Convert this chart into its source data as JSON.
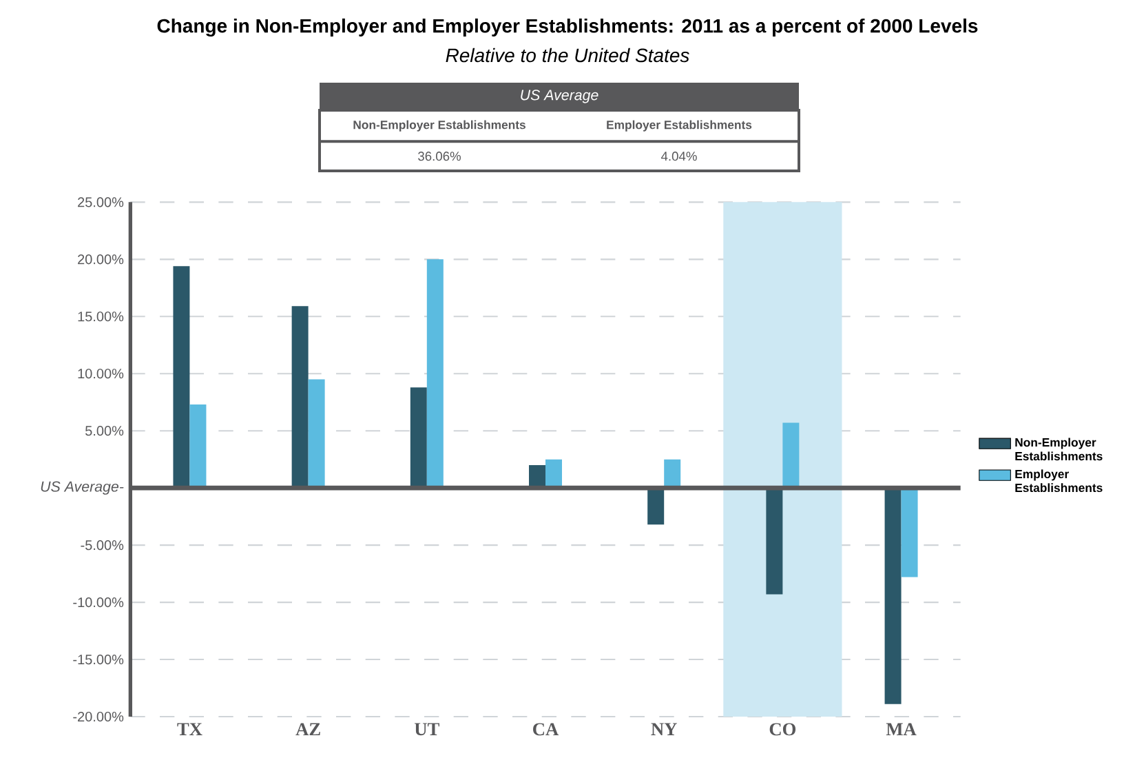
{
  "chart_data": {
    "type": "bar",
    "title": "Change in Non-Employer and Employer Establishments: 2011 as a percent of 2000 Levels",
    "subtitle": "Relative to the United States",
    "annotations": [
      "US Average",
      "Non-Employer Establishments",
      "Employer Establishments",
      "36.06%",
      "4.04%"
    ],
    "categories": [
      "TX",
      "AZ",
      "UT",
      "CA",
      "NY",
      "CO",
      "MA"
    ],
    "series": [
      {
        "name": "Non-Employer Establishments",
        "color": "#2b5869",
        "values": [
          19.4,
          15.9,
          8.8,
          2.0,
          -3.2,
          -9.3,
          -18.9
        ]
      },
      {
        "name": "Employer Establishments",
        "color": "#5bbbe0",
        "values": [
          7.3,
          9.5,
          20.0,
          2.5,
          2.5,
          5.7,
          -7.8
        ]
      }
    ],
    "ylim": [
      -20,
      25
    ],
    "yticks": [
      {
        "value": 25,
        "label": "25.00%"
      },
      {
        "value": 20,
        "label": "20.00%"
      },
      {
        "value": 15,
        "label": "15.00%"
      },
      {
        "value": 10,
        "label": "10.00%"
      },
      {
        "value": 5,
        "label": "5.00%"
      },
      {
        "value": -5,
        "label": "-5.00%"
      },
      {
        "value": -10,
        "label": "-10.00%"
      },
      {
        "value": -15,
        "label": "-15.00%"
      },
      {
        "value": -20,
        "label": "-20.00%"
      }
    ],
    "ref_lines": [
      {
        "axis": "y",
        "value": 0,
        "label": "US Average-",
        "color": "#58585a"
      }
    ],
    "bands": [
      {
        "axis": "x",
        "from": "CO",
        "to": "CO",
        "color": "#cde8f3"
      }
    ],
    "grid": "y",
    "legend": "right"
  }
}
